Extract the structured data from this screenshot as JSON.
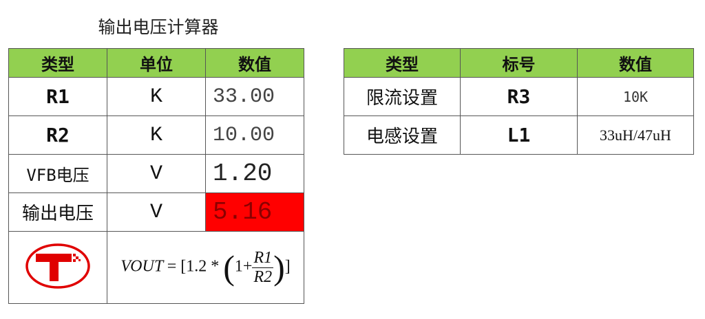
{
  "title": "输出电压计算器",
  "left_table": {
    "headers": [
      "类型",
      "单位",
      "数值"
    ],
    "rows": [
      {
        "type": "R1",
        "unit": "K",
        "value": "33.00"
      },
      {
        "type": "R2",
        "unit": "K",
        "value": "10.00"
      },
      {
        "type": "VFB电压",
        "unit": "V",
        "value": "1.20"
      },
      {
        "type": "输出电压",
        "unit": "V",
        "value": "5.16"
      }
    ],
    "formula": {
      "lhs": "VOUT",
      "eq": "= [1.2 *",
      "one": "1+",
      "num": "R1",
      "den": "R2",
      "close": "]"
    },
    "logo": "T"
  },
  "right_table": {
    "headers": [
      "类型",
      "标号",
      "数值"
    ],
    "rows": [
      {
        "type": "限流设置",
        "label": "R3",
        "value": "10K"
      },
      {
        "type": "电感设置",
        "label": "L1",
        "value": "33uH/47uH"
      }
    ]
  },
  "colors": {
    "header_bg": "#92d050",
    "result_bg": "#ff0000",
    "logo": "#e00000"
  }
}
